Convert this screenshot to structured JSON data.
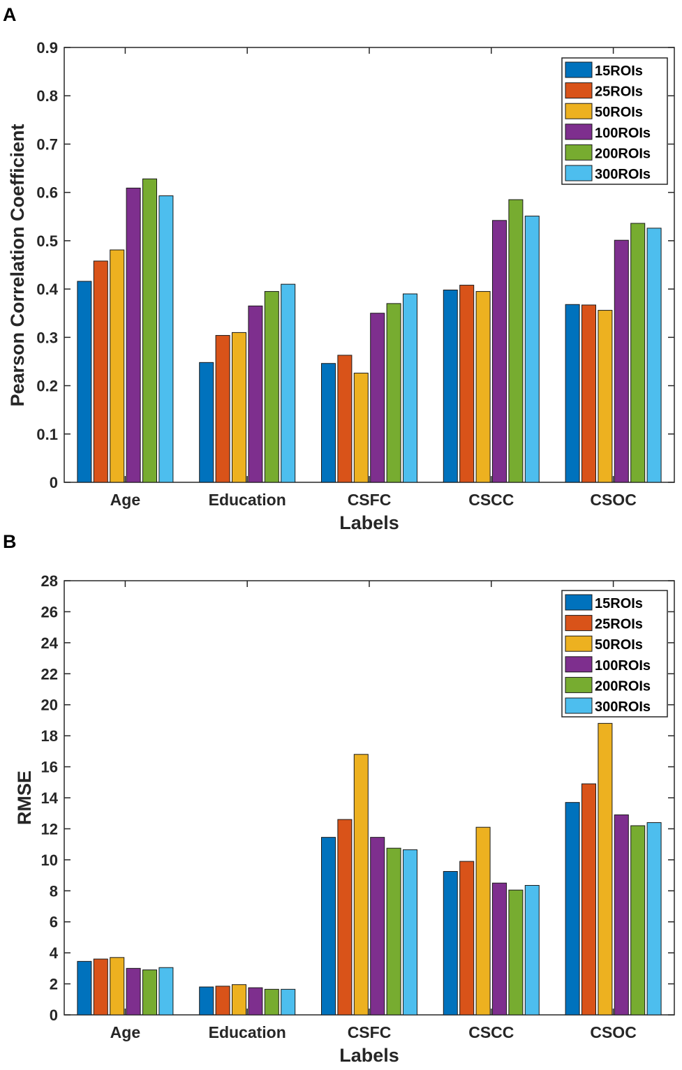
{
  "colors": {
    "15ROIs": "#0072BD",
    "25ROIs": "#D95319",
    "50ROIs": "#EDB120",
    "100ROIs": "#7E2F8E",
    "200ROIs": "#77AC30",
    "300ROIs": "#4DBEEE"
  },
  "chart_data": [
    {
      "panel": "A",
      "type": "bar",
      "categories": [
        "Age",
        "Education",
        "CSFC",
        "CSCC",
        "CSOC"
      ],
      "series": [
        {
          "name": "15ROIs",
          "values": [
            0.416,
            0.248,
            0.246,
            0.398,
            0.368
          ]
        },
        {
          "name": "25ROIs",
          "values": [
            0.458,
            0.304,
            0.263,
            0.408,
            0.367
          ]
        },
        {
          "name": "50ROIs",
          "values": [
            0.481,
            0.31,
            0.226,
            0.395,
            0.356
          ]
        },
        {
          "name": "100ROIs",
          "values": [
            0.609,
            0.365,
            0.35,
            0.542,
            0.501
          ]
        },
        {
          "name": "200ROIs",
          "values": [
            0.628,
            0.395,
            0.37,
            0.585,
            0.536
          ]
        },
        {
          "name": "300ROIs",
          "values": [
            0.593,
            0.41,
            0.39,
            0.551,
            0.526
          ]
        }
      ],
      "title": "",
      "xlabel": "Labels",
      "ylabel": "Pearson Correlation Coefficient",
      "ylim": [
        0,
        0.9
      ],
      "yticks": [
        "0",
        "0.1",
        "0.2",
        "0.3",
        "0.4",
        "0.5",
        "0.6",
        "0.7",
        "0.8",
        "0.9"
      ],
      "legend_position": "top-right",
      "grid": false
    },
    {
      "panel": "B",
      "type": "bar",
      "categories": [
        "Age",
        "Education",
        "CSFC",
        "CSCC",
        "CSOC"
      ],
      "series": [
        {
          "name": "15ROIs",
          "values": [
            3.45,
            1.8,
            11.45,
            9.25,
            13.7
          ]
        },
        {
          "name": "25ROIs",
          "values": [
            3.6,
            1.85,
            12.6,
            9.9,
            14.9
          ]
        },
        {
          "name": "50ROIs",
          "values": [
            3.7,
            1.95,
            16.8,
            12.1,
            18.8
          ]
        },
        {
          "name": "100ROIs",
          "values": [
            3.0,
            1.75,
            11.45,
            8.5,
            12.9
          ]
        },
        {
          "name": "200ROIs",
          "values": [
            2.9,
            1.65,
            10.75,
            8.05,
            12.2
          ]
        },
        {
          "name": "300ROIs",
          "values": [
            3.05,
            1.65,
            10.65,
            8.35,
            12.4
          ]
        }
      ],
      "title": "",
      "xlabel": "Labels",
      "ylabel": "RMSE",
      "ylim": [
        0,
        28
      ],
      "yticks": [
        "0",
        "2",
        "4",
        "6",
        "8",
        "10",
        "12",
        "14",
        "16",
        "18",
        "20",
        "22",
        "24",
        "26",
        "28"
      ],
      "legend_position": "top-right",
      "grid": false
    }
  ]
}
